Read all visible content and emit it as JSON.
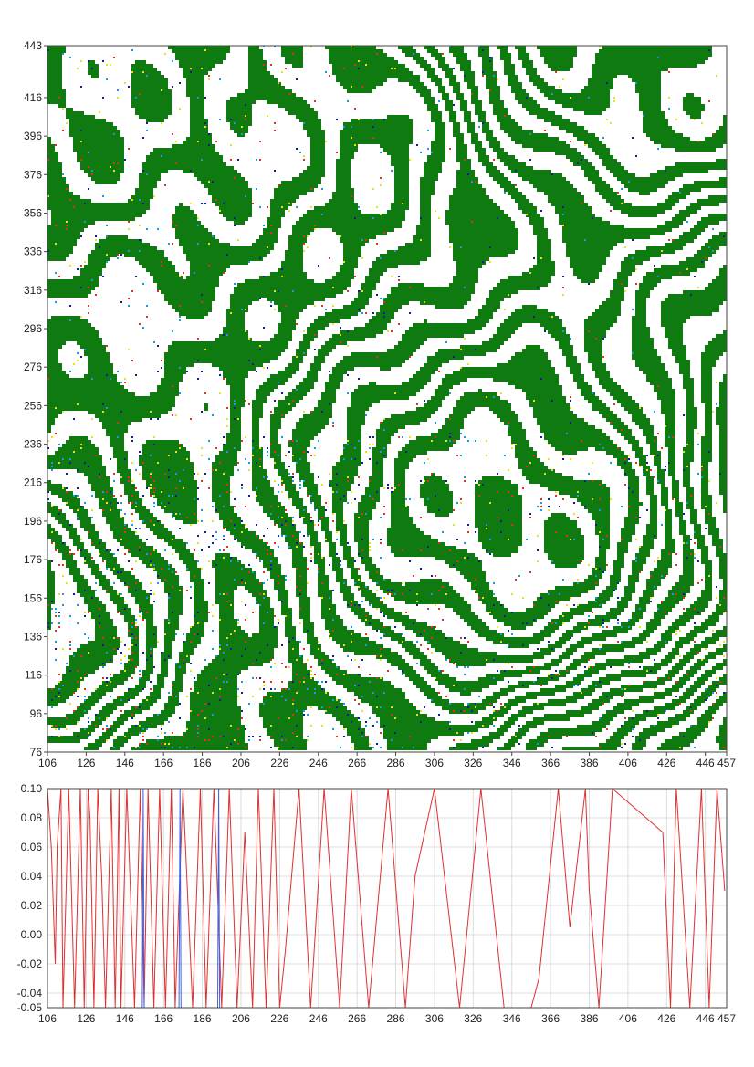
{
  "chart_data": [
    {
      "type": "heatmap",
      "title": "",
      "xlabel": "",
      "ylabel": "",
      "xlim": [
        106,
        457
      ],
      "ylim": [
        76,
        443
      ],
      "x_ticks": [
        106,
        126,
        146,
        166,
        186,
        206,
        226,
        246,
        266,
        286,
        306,
        326,
        346,
        366,
        386,
        406,
        426,
        446,
        457
      ],
      "y_ticks": [
        76,
        96,
        116,
        136,
        156,
        176,
        196,
        216,
        236,
        256,
        276,
        296,
        316,
        336,
        356,
        376,
        396,
        416,
        443
      ],
      "colors": {
        "dominant": "#0f7a0f",
        "background": "#ffffff",
        "speckle": [
          "#0a1f8f",
          "#1e9be0",
          "#e8e020",
          "#e03020"
        ]
      },
      "grid": false
    },
    {
      "type": "line",
      "title": "",
      "xlabel": "",
      "ylabel": "",
      "xlim": [
        106,
        457
      ],
      "ylim": [
        -0.05,
        0.1
      ],
      "grid": true,
      "x_ticks": [
        106,
        126,
        146,
        166,
        186,
        206,
        226,
        246,
        266,
        286,
        306,
        326,
        346,
        366,
        386,
        406,
        426,
        446,
        457
      ],
      "y_ticks": [
        -0.05,
        -0.04,
        -0.02,
        0.0,
        0.02,
        0.04,
        0.06,
        0.08,
        0.1
      ],
      "y_tick_labels": [
        "-0.05",
        "-0.04",
        "-0.02",
        "0.00",
        "0.02",
        "0.04",
        "0.06",
        "0.08",
        "0.10"
      ],
      "series": [
        {
          "color": "#e03030",
          "x": [
            106,
            108,
            110,
            111,
            113,
            114,
            117,
            120,
            123,
            125,
            127,
            128,
            130,
            132,
            134,
            136,
            139,
            141,
            143,
            144,
            147,
            151,
            154,
            156,
            158,
            161,
            164,
            167,
            170,
            172,
            176,
            181,
            185,
            188,
            192,
            196,
            200,
            204,
            208,
            212,
            215,
            219,
            223,
            226,
            229,
            236,
            242,
            249,
            257,
            263,
            272,
            282,
            291,
            296,
            306,
            319,
            330,
            342,
            356,
            360,
            370,
            376,
            384,
            386,
            391,
            398,
            424,
            428,
            431,
            438,
            444,
            448,
            452,
            456
          ],
          "y": [
            0.1,
            0.06,
            -0.02,
            0.06,
            0.1,
            -0.05,
            0.1,
            -0.05,
            0.1,
            -0.05,
            0.1,
            0.08,
            -0.05,
            0.1,
            0.04,
            -0.05,
            0.1,
            -0.05,
            0.1,
            -0.05,
            0.1,
            -0.05,
            0.1,
            -0.05,
            0.1,
            -0.05,
            0.1,
            -0.05,
            0.1,
            -0.05,
            0.1,
            -0.05,
            0.1,
            -0.05,
            0.1,
            -0.05,
            0.1,
            -0.05,
            0.07,
            -0.05,
            0.1,
            -0.05,
            0.1,
            -0.05,
            -0.01,
            0.1,
            -0.05,
            0.1,
            -0.05,
            0.1,
            -0.05,
            0.1,
            -0.05,
            0.04,
            0.1,
            -0.05,
            0.1,
            -0.05,
            -0.05,
            -0.03,
            0.1,
            0.005,
            0.1,
            0.03,
            -0.05,
            0.1,
            0.07,
            -0.05,
            0.1,
            -0.05,
            0.1,
            -0.05,
            0.1,
            0.03
          ]
        },
        {
          "color": "#4060e0",
          "x": [
            155,
            155.5,
            156,
            174,
            174.5,
            175,
            194,
            194.5,
            195
          ],
          "y": [
            -0.05,
            0.1,
            -0.05,
            -0.05,
            0.1,
            -0.05,
            -0.05,
            0.1,
            -0.05
          ]
        }
      ]
    }
  ]
}
